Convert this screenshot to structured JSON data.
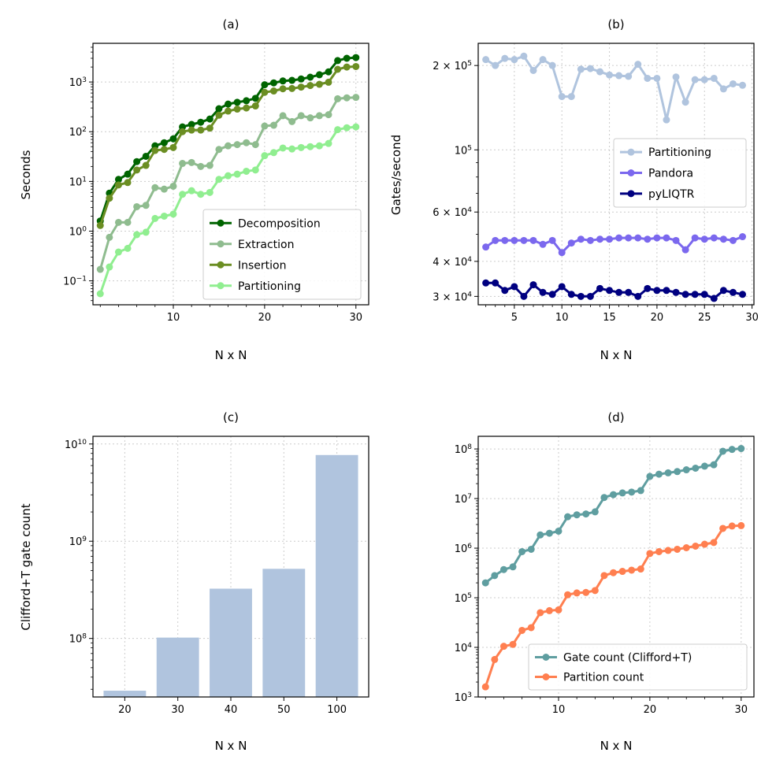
{
  "figure": {
    "background": "#ffffff"
  },
  "chart_data": [
    {
      "id": "a",
      "type": "line",
      "title": "(a)",
      "xlabel": "N x N",
      "ylabel": "Seconds",
      "yscale": "log",
      "xlim": [
        1.2,
        31.4
      ],
      "ylim": [
        0.033,
        6000
      ],
      "xticks": [
        10,
        20,
        30
      ],
      "xtick_labels": [
        "10",
        "20",
        "30"
      ],
      "yticks": [
        0.1,
        1,
        10,
        100,
        1000
      ],
      "ytick_labels": [
        [
          "10",
          "−1"
        ],
        [
          "10",
          "0"
        ],
        [
          "10",
          "1"
        ],
        [
          "10",
          "2"
        ],
        [
          "10",
          "3"
        ]
      ],
      "legend_position": "lower-right",
      "x": [
        2,
        3,
        4,
        5,
        6,
        7,
        8,
        9,
        10,
        11,
        12,
        13,
        14,
        15,
        16,
        17,
        18,
        19,
        20,
        21,
        22,
        23,
        24,
        25,
        26,
        27,
        28,
        29,
        30
      ],
      "series": [
        {
          "name": "Decomposition",
          "color": "#006400",
          "values": [
            1.6,
            5.8,
            11,
            14,
            25,
            32,
            52,
            60,
            72,
            125,
            140,
            155,
            180,
            290,
            360,
            390,
            420,
            470,
            880,
            960,
            1050,
            1080,
            1150,
            1250,
            1400,
            1600,
            2700,
            3000,
            3100
          ]
        },
        {
          "name": "Extraction",
          "color": "#8fbc8f",
          "values": [
            0.17,
            0.75,
            1.5,
            1.5,
            3.1,
            3.3,
            7.5,
            7,
            8,
            23,
            24,
            20,
            21,
            44,
            52,
            55,
            60,
            55,
            130,
            135,
            210,
            160,
            210,
            190,
            210,
            220,
            460,
            480,
            490
          ]
        },
        {
          "name": "Insertion",
          "color": "#6b8e23",
          "values": [
            1.3,
            4.6,
            8.5,
            9.5,
            17,
            21,
            42,
            44,
            48,
            100,
            108,
            108,
            118,
            215,
            260,
            285,
            300,
            330,
            620,
            660,
            730,
            740,
            790,
            850,
            900,
            990,
            1800,
            2000,
            2050
          ]
        },
        {
          "name": "Partitioning",
          "color": "#90ee90",
          "values": [
            0.055,
            0.19,
            0.38,
            0.45,
            0.85,
            0.95,
            1.8,
            2.0,
            2.2,
            5.5,
            6.5,
            5.5,
            6.0,
            11,
            13,
            14,
            16,
            17,
            33,
            38,
            47,
            45,
            48,
            50,
            52,
            58,
            110,
            120,
            125
          ]
        }
      ]
    },
    {
      "id": "b",
      "type": "line",
      "title": "(b)",
      "xlabel": "N x N",
      "ylabel": "Gates/second",
      "yscale": "log",
      "xlim": [
        1.2,
        30.2
      ],
      "ylim": [
        28000,
        240000
      ],
      "xticks": [
        5,
        10,
        15,
        20,
        25,
        30
      ],
      "xtick_labels": [
        "5",
        "10",
        "15",
        "20",
        "25",
        "30"
      ],
      "yticks": [
        30000,
        40000,
        60000,
        100000,
        200000
      ],
      "ytick_labels": [
        [
          "3 × 10",
          "4"
        ],
        [
          "4 × 10",
          "4"
        ],
        [
          "6 × 10",
          "4"
        ],
        [
          "10",
          "5"
        ],
        [
          "2 × 10",
          "5"
        ]
      ],
      "legend_position": "center-right",
      "x": [
        2,
        3,
        4,
        5,
        6,
        7,
        8,
        9,
        10,
        11,
        12,
        13,
        14,
        15,
        16,
        17,
        18,
        19,
        20,
        21,
        22,
        23,
        24,
        25,
        26,
        27,
        28,
        29
      ],
      "series": [
        {
          "name": "Partitioning",
          "color": "#b0c4de",
          "values": [
            210000,
            200000,
            212000,
            210000,
            216000,
            192000,
            210000,
            200000,
            155000,
            155000,
            194000,
            195000,
            190000,
            185000,
            184000,
            183000,
            202000,
            180000,
            180000,
            128000,
            182000,
            148000,
            178000,
            178000,
            180000,
            165000,
            172000,
            170000
          ]
        },
        {
          "name": "Pandora",
          "color": "#7b68ee",
          "values": [
            45000,
            47500,
            47500,
            47500,
            47500,
            47500,
            46000,
            47500,
            43000,
            46500,
            48000,
            47500,
            48000,
            48000,
            48500,
            48500,
            48500,
            48000,
            48500,
            48500,
            47500,
            44000,
            48500,
            48000,
            48500,
            48000,
            47500,
            49000
          ]
        },
        {
          "name": "pyLIQTR",
          "color": "#000080",
          "values": [
            33500,
            33500,
            31500,
            32500,
            30000,
            33000,
            31000,
            30500,
            32500,
            30500,
            30000,
            30000,
            32000,
            31500,
            31000,
            31000,
            30000,
            32000,
            31500,
            31500,
            31000,
            30500,
            30500,
            30500,
            29500,
            31500,
            31000,
            30500
          ]
        }
      ]
    },
    {
      "id": "c",
      "type": "bar",
      "title": "(c)",
      "xlabel": "N x N",
      "ylabel": "Clifford+T gate count",
      "yscale": "log",
      "ylim": [
        25000000,
        12000000000
      ],
      "yticks": [
        100000000,
        1000000000,
        10000000000
      ],
      "ytick_labels": [
        [
          "10",
          "8"
        ],
        [
          "10",
          "9"
        ],
        [
          "10",
          "10"
        ]
      ],
      "categories": [
        "20",
        "30",
        "40",
        "50",
        "100"
      ],
      "values": [
        29000000,
        102000000,
        325000000,
        520000000,
        7700000000
      ],
      "color": "#b0c4de"
    },
    {
      "id": "d",
      "type": "line",
      "title": "(d)",
      "xlabel": "N x N",
      "ylabel": "",
      "yscale": "log",
      "xlim": [
        1.2,
        31.4
      ],
      "ylim": [
        1000,
        180000000
      ],
      "xticks": [
        10,
        20,
        30
      ],
      "xtick_labels": [
        "10",
        "20",
        "30"
      ],
      "yticks": [
        1000,
        10000,
        100000,
        1000000,
        10000000,
        100000000
      ],
      "ytick_labels": [
        [
          "10",
          "3"
        ],
        [
          "10",
          "4"
        ],
        [
          "10",
          "5"
        ],
        [
          "10",
          "6"
        ],
        [
          "10",
          "7"
        ],
        [
          "10",
          "8"
        ]
      ],
      "legend_position": "lower-right",
      "x": [
        2,
        3,
        4,
        5,
        6,
        7,
        8,
        9,
        10,
        11,
        12,
        13,
        14,
        15,
        16,
        17,
        18,
        19,
        20,
        21,
        22,
        23,
        24,
        25,
        26,
        27,
        28,
        29,
        30
      ],
      "series": [
        {
          "name": "Gate count (Clifford+T)",
          "color": "#5f9ea0",
          "values": [
            200000,
            280000,
            370000,
            420000,
            850000,
            950000,
            1850000,
            2000000,
            2200000,
            4300000,
            4700000,
            4900000,
            5400000,
            10500000,
            12000000,
            13000000,
            13500000,
            14500000,
            28000000,
            31000000,
            33000000,
            35000000,
            38000000,
            41000000,
            45000000,
            48000000,
            90000000,
            98000000,
            102000000
          ]
        },
        {
          "name": "Partition count",
          "color": "#ff7f50",
          "values": [
            1600,
            5700,
            10500,
            11500,
            22000,
            25000,
            50000,
            55000,
            57000,
            115000,
            125000,
            128000,
            140000,
            280000,
            320000,
            340000,
            360000,
            380000,
            780000,
            850000,
            900000,
            950000,
            1020000,
            1100000,
            1200000,
            1300000,
            2500000,
            2800000,
            2850000
          ]
        }
      ]
    }
  ]
}
